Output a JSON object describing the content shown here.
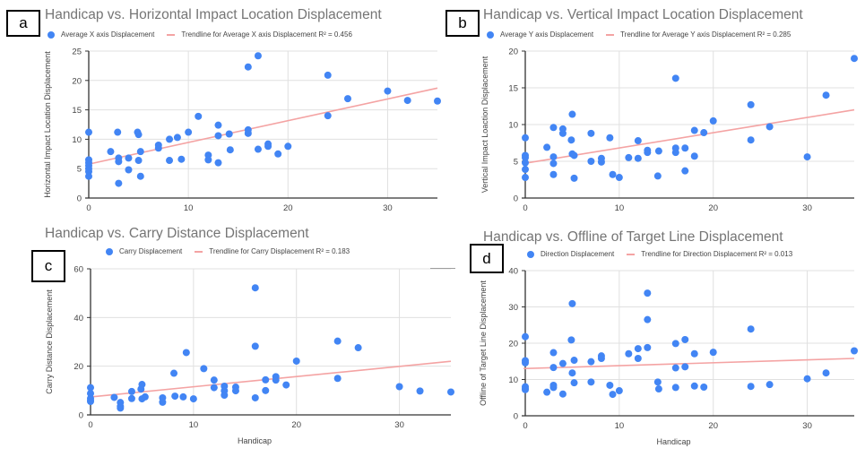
{
  "colors": {
    "point": "#4285f4",
    "trendline": "#f4a3a3",
    "title": "#757575",
    "grid": "#e0e0e0",
    "axis": "#333333",
    "tick": "#444444"
  },
  "chart_data": [
    {
      "panel": "a",
      "type": "scatter",
      "title": "Handicap vs. Horizontal Impact Location Displacement",
      "xlabel": "",
      "ylabel": "Horizontal Impact Location Displacement",
      "xlim": [
        0,
        35
      ],
      "ylim": [
        0,
        25
      ],
      "xticks": [
        0,
        10,
        20,
        30
      ],
      "yticks": [
        0,
        5,
        10,
        15,
        20,
        25
      ],
      "grid": true,
      "legend_position": "top-left",
      "series": [
        {
          "name": "Average X axis Displacement",
          "points": [
            [
              0,
              11.2
            ],
            [
              0,
              6.5
            ],
            [
              0,
              6.0
            ],
            [
              0,
              5.5
            ],
            [
              0,
              5.0
            ],
            [
              0,
              4.5
            ],
            [
              0,
              3.7
            ],
            [
              2.2,
              7.9
            ],
            [
              2.9,
              11.2
            ],
            [
              3,
              6.8
            ],
            [
              3,
              6.2
            ],
            [
              3,
              2.5
            ],
            [
              4,
              6.8
            ],
            [
              4,
              4.8
            ],
            [
              4.9,
              11.2
            ],
            [
              5,
              10.8
            ],
            [
              5,
              6.4
            ],
            [
              5.2,
              7.9
            ],
            [
              5.2,
              3.7
            ],
            [
              7,
              9.0
            ],
            [
              7,
              8.5
            ],
            [
              8.1,
              10.0
            ],
            [
              8.1,
              6.4
            ],
            [
              8.9,
              10.3
            ],
            [
              9.3,
              6.6
            ],
            [
              10,
              11.2
            ],
            [
              11,
              13.9
            ],
            [
              12,
              7.3
            ],
            [
              12,
              6.5
            ],
            [
              13,
              12.4
            ],
            [
              13,
              10.6
            ],
            [
              13,
              6.0
            ],
            [
              14.1,
              10.9
            ],
            [
              14.2,
              8.2
            ],
            [
              16,
              22.3
            ],
            [
              16,
              11.6
            ],
            [
              16,
              11.0
            ],
            [
              17,
              24.2
            ],
            [
              17,
              8.3
            ],
            [
              18,
              9.2
            ],
            [
              18,
              8.8
            ],
            [
              19,
              7.5
            ],
            [
              20,
              8.8
            ],
            [
              24,
              20.9
            ],
            [
              24,
              14.0
            ],
            [
              26,
              16.9
            ],
            [
              30,
              18.2
            ],
            [
              32,
              16.6
            ],
            [
              35,
              16.5
            ]
          ]
        },
        {
          "name": "Trendline for Average X axis Displacement R² = 0.456",
          "type": "line",
          "points": [
            [
              0,
              5.7
            ],
            [
              35,
              18.7
            ]
          ]
        }
      ],
      "legend": [
        "Average X axis Displacement",
        "Trendline for Average X axis Displacement R² = 0.456"
      ]
    },
    {
      "panel": "b",
      "type": "scatter",
      "title": "Handicap vs. Vertical Impact Location Displacement",
      "xlabel": "",
      "ylabel": "Vertical Impact Loaction Displacement",
      "xlim": [
        0,
        35
      ],
      "ylim": [
        0,
        20
      ],
      "xticks": [
        0,
        10,
        20,
        30
      ],
      "yticks": [
        0,
        5,
        10,
        15,
        20
      ],
      "grid": true,
      "legend_position": "top-left",
      "series": [
        {
          "name": "Average Y axis Displacement",
          "points": [
            [
              0,
              8.2
            ],
            [
              0,
              5.8
            ],
            [
              0,
              5.5
            ],
            [
              0,
              4.8
            ],
            [
              0,
              3.9
            ],
            [
              0,
              2.8
            ],
            [
              2.3,
              6.9
            ],
            [
              3,
              9.6
            ],
            [
              3,
              5.6
            ],
            [
              3,
              4.7
            ],
            [
              3,
              3.2
            ],
            [
              4,
              9.4
            ],
            [
              4,
              8.8
            ],
            [
              4.9,
              7.9
            ],
            [
              5,
              11.4
            ],
            [
              5,
              6.0
            ],
            [
              5.2,
              5.8
            ],
            [
              5.2,
              2.7
            ],
            [
              7,
              8.8
            ],
            [
              7,
              5.0
            ],
            [
              8.1,
              5.4
            ],
            [
              8.1,
              4.9
            ],
            [
              9,
              8.2
            ],
            [
              9.3,
              3.2
            ],
            [
              10,
              2.8
            ],
            [
              11,
              5.5
            ],
            [
              12,
              7.8
            ],
            [
              12,
              5.4
            ],
            [
              13,
              6.5
            ],
            [
              13,
              6.2
            ],
            [
              14.2,
              6.4
            ],
            [
              14.1,
              3.0
            ],
            [
              16,
              16.3
            ],
            [
              16,
              6.8
            ],
            [
              16,
              6.2
            ],
            [
              17,
              6.8
            ],
            [
              17,
              3.7
            ],
            [
              18,
              9.2
            ],
            [
              18,
              5.7
            ],
            [
              19,
              8.9
            ],
            [
              20,
              10.5
            ],
            [
              24,
              12.7
            ],
            [
              24,
              7.9
            ],
            [
              26,
              9.7
            ],
            [
              30,
              5.6
            ],
            [
              32,
              14.0
            ],
            [
              35,
              19.0
            ]
          ]
        },
        {
          "name": "Trendline for Average Y axis Displacement R² = 0.285",
          "type": "line",
          "points": [
            [
              0,
              4.7
            ],
            [
              35,
              12.0
            ]
          ]
        }
      ],
      "legend": [
        "Average Y axis Displacement",
        "Trendline for Average Y axis Displacement R² = 0.285"
      ]
    },
    {
      "panel": "c",
      "type": "scatter",
      "title": "Handicap vs. Carry Distance Displacement",
      "xlabel": "Handicap",
      "ylabel": "Carry Distance Displacement",
      "xlim": [
        0,
        35
      ],
      "ylim": [
        0,
        60
      ],
      "xticks": [
        0,
        10,
        20,
        30
      ],
      "yticks": [
        0,
        20,
        40,
        60
      ],
      "grid": true,
      "legend_position": "top",
      "series": [
        {
          "name": "Carry Displacement",
          "points": [
            [
              0,
              11.2
            ],
            [
              0,
              8.8
            ],
            [
              0,
              6.8
            ],
            [
              0,
              6.0
            ],
            [
              0,
              5.5
            ],
            [
              2.3,
              7.2
            ],
            [
              2.9,
              5.1
            ],
            [
              2.9,
              3.5
            ],
            [
              2.9,
              2.8
            ],
            [
              4,
              9.6
            ],
            [
              4,
              6.7
            ],
            [
              4.9,
              10.6
            ],
            [
              5,
              12.5
            ],
            [
              5,
              6.6
            ],
            [
              5.3,
              7.4
            ],
            [
              7,
              7.0
            ],
            [
              7,
              5.2
            ],
            [
              8.1,
              17.1
            ],
            [
              8.2,
              7.7
            ],
            [
              9,
              7.4
            ],
            [
              9.3,
              25.6
            ],
            [
              10,
              6.6
            ],
            [
              11,
              19.0
            ],
            [
              12,
              14.3
            ],
            [
              12,
              11.2
            ],
            [
              13,
              11.8
            ],
            [
              13,
              9.9
            ],
            [
              13,
              8.1
            ],
            [
              14.1,
              11.4
            ],
            [
              14.1,
              9.9
            ],
            [
              16,
              52.2
            ],
            [
              16,
              28.2
            ],
            [
              16,
              7.0
            ],
            [
              17,
              14.4
            ],
            [
              17,
              10.0
            ],
            [
              18,
              15.7
            ],
            [
              18,
              14.3
            ],
            [
              19,
              12.3
            ],
            [
              20,
              22.1
            ],
            [
              24,
              30.3
            ],
            [
              24,
              15.0
            ],
            [
              26,
              27.6
            ],
            [
              30,
              11.6
            ],
            [
              32,
              9.8
            ],
            [
              35,
              9.4
            ]
          ]
        },
        {
          "name": "Trendline for Carry Displacement R² = 0.183",
          "type": "line",
          "points": [
            [
              0,
              7.3
            ],
            [
              35,
              22.0
            ]
          ]
        }
      ],
      "legend": [
        "Carry Displacement",
        "Trendline for Carry Displacement R² = 0.183"
      ]
    },
    {
      "panel": "d",
      "type": "scatter",
      "title": "Handicap vs. Offline of Target Line Displacement",
      "xlabel": "Handicap",
      "ylabel": "Offline of Target Line Displacement",
      "xlim": [
        0,
        35
      ],
      "ylim": [
        0,
        40
      ],
      "xticks": [
        0,
        10,
        20,
        30
      ],
      "yticks": [
        0,
        10,
        20,
        30,
        40
      ],
      "grid": true,
      "legend_position": "top",
      "series": [
        {
          "name": "Direction Displacement",
          "points": [
            [
              0,
              21.8
            ],
            [
              0,
              15.2
            ],
            [
              0,
              14.6
            ],
            [
              0,
              8.0
            ],
            [
              0,
              7.5
            ],
            [
              0,
              7.2
            ],
            [
              2.3,
              6.5
            ],
            [
              3,
              17.4
            ],
            [
              3,
              13.3
            ],
            [
              3,
              8.4
            ],
            [
              3,
              7.8
            ],
            [
              4,
              14.4
            ],
            [
              4,
              6.0
            ],
            [
              5,
              30.9
            ],
            [
              4.9,
              20.9
            ],
            [
              5,
              11.8
            ],
            [
              5.2,
              15.3
            ],
            [
              5.2,
              9.1
            ],
            [
              7,
              14.9
            ],
            [
              7,
              9.3
            ],
            [
              8.1,
              16.5
            ],
            [
              8.1,
              15.8
            ],
            [
              9,
              8.4
            ],
            [
              9.3,
              5.9
            ],
            [
              10,
              6.9
            ],
            [
              11,
              17.1
            ],
            [
              12,
              18.5
            ],
            [
              12,
              15.8
            ],
            [
              13,
              33.8
            ],
            [
              13,
              26.5
            ],
            [
              13,
              18.8
            ],
            [
              14.1,
              9.3
            ],
            [
              14.2,
              7.4
            ],
            [
              16,
              19.9
            ],
            [
              16,
              13.2
            ],
            [
              16,
              7.8
            ],
            [
              17,
              21.0
            ],
            [
              17,
              13.5
            ],
            [
              18,
              17.1
            ],
            [
              18,
              8.2
            ],
            [
              19,
              7.9
            ],
            [
              20,
              17.5
            ],
            [
              24,
              23.9
            ],
            [
              24,
              8.1
            ],
            [
              26,
              8.6
            ],
            [
              30,
              10.2
            ],
            [
              32,
              11.8
            ],
            [
              35,
              17.9
            ]
          ]
        },
        {
          "name": "Trendline for Direction Displacement R² = 0.013",
          "type": "line",
          "points": [
            [
              0,
              13.0
            ],
            [
              35,
              15.8
            ]
          ]
        }
      ],
      "legend": [
        "Direction Displacement",
        "Trendline for Direction Displacement R² = 0.013"
      ]
    }
  ],
  "panel_labels": [
    "a",
    "b",
    "c",
    "d"
  ]
}
